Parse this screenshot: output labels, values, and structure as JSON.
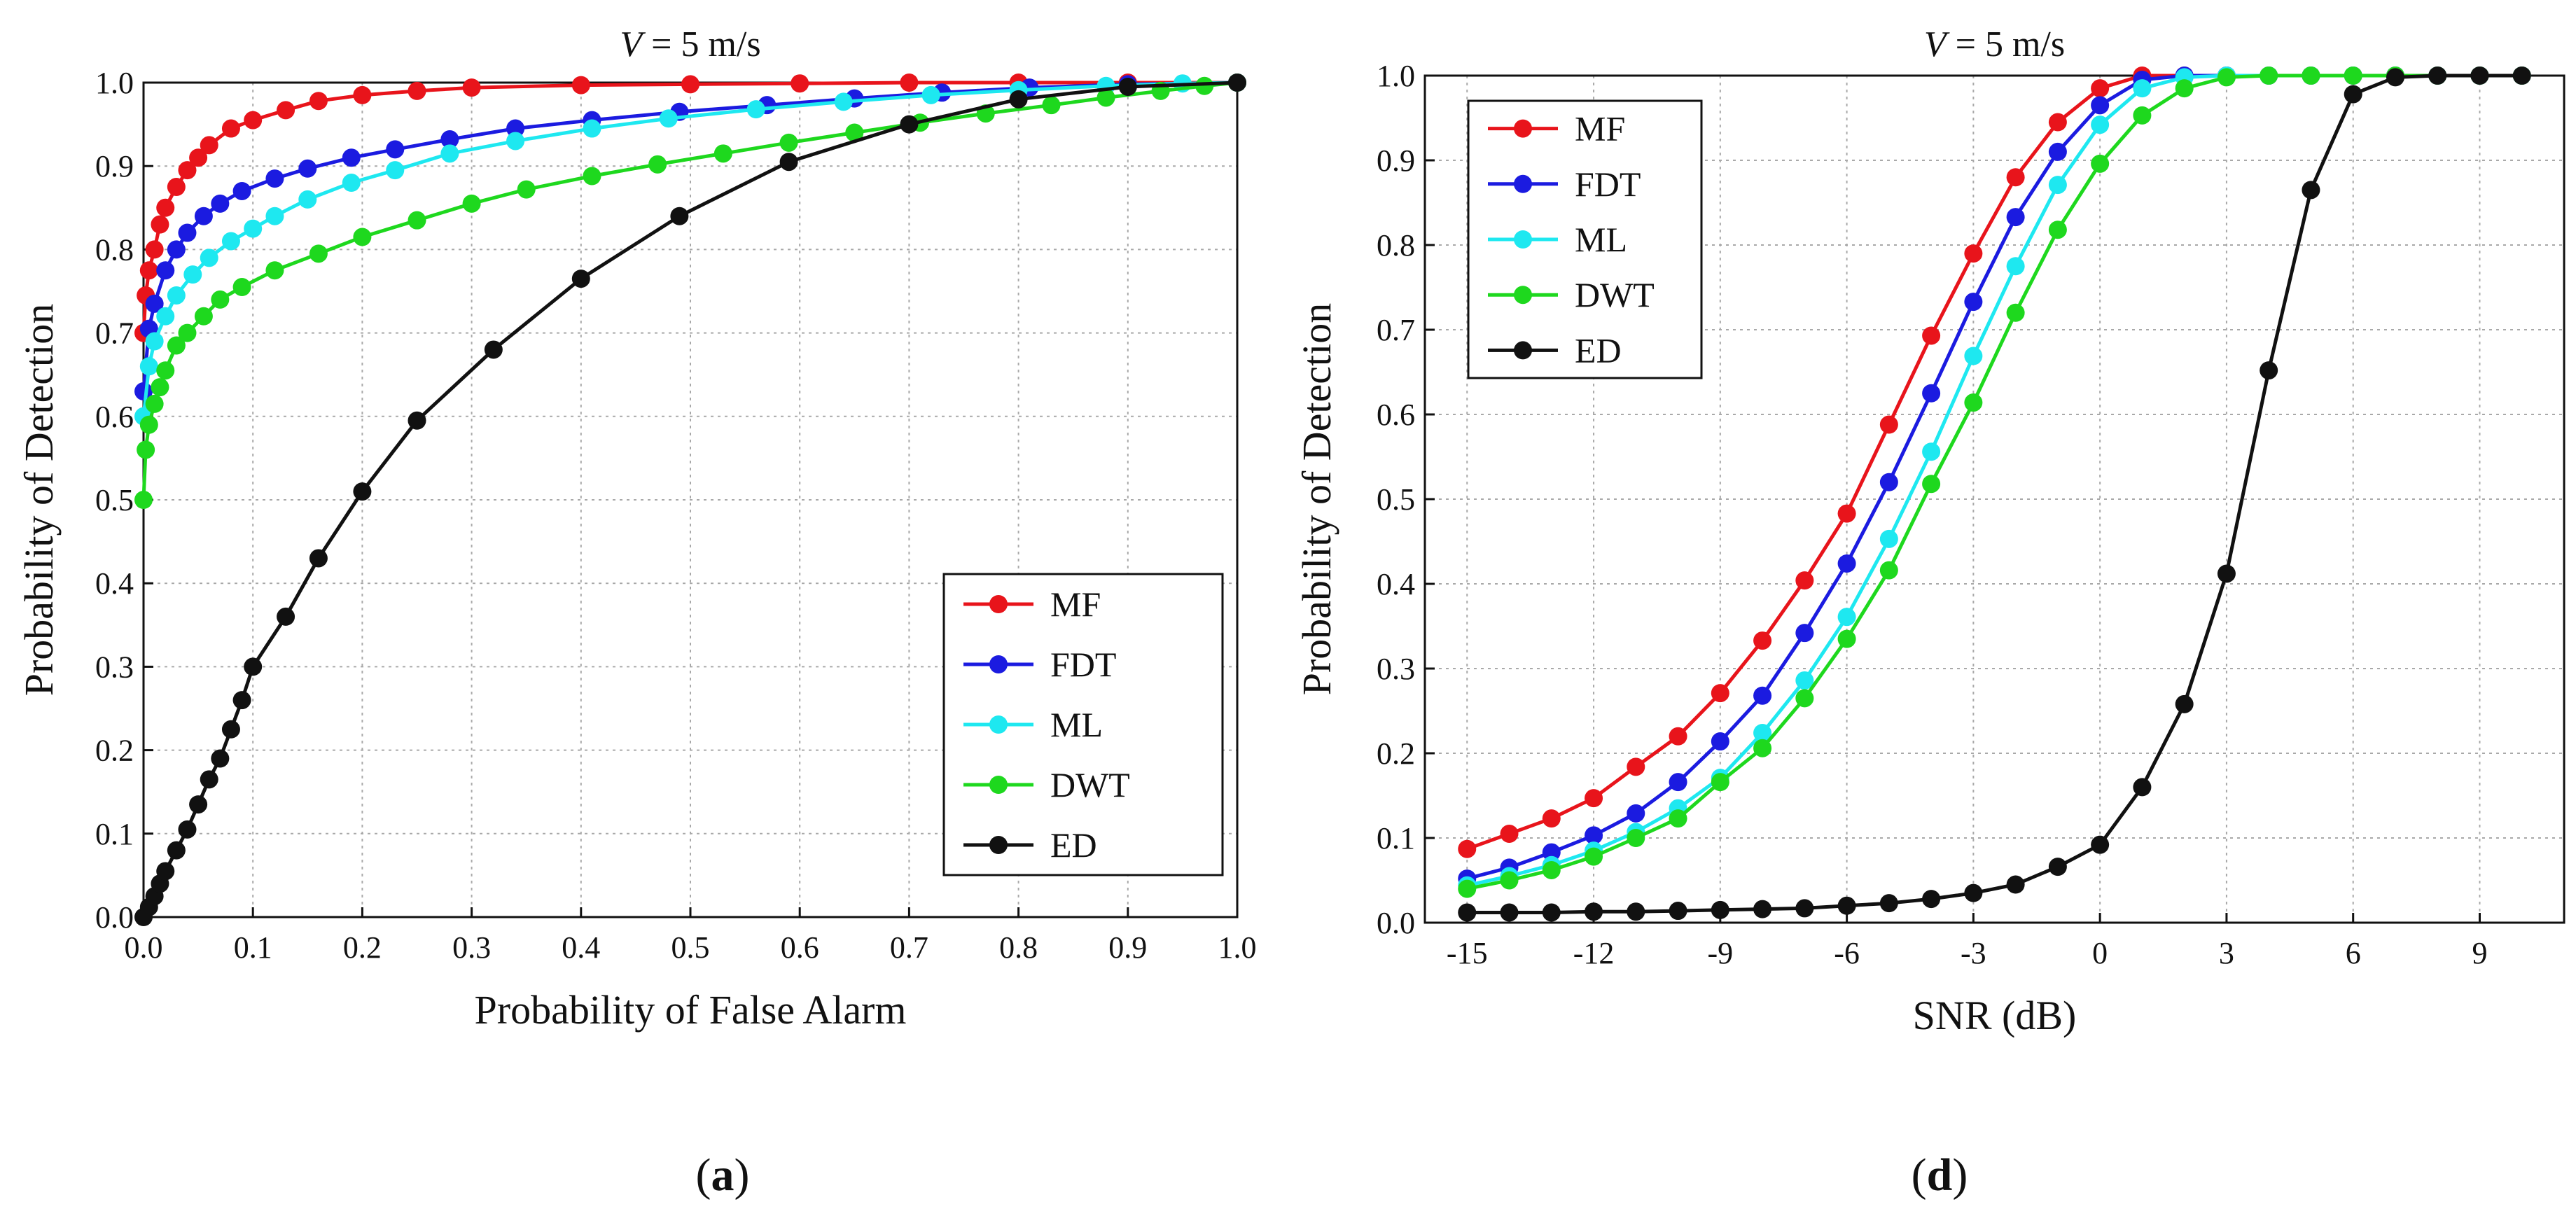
{
  "chart_data": [
    {
      "id": "a",
      "type": "line",
      "title_prefix": "V",
      "title_suffix": " = 5 m/s",
      "xlabel": "Probability of False Alarm",
      "ylabel": "Probability of Detection",
      "xlim": [
        0,
        1
      ],
      "ylim": [
        0,
        1
      ],
      "xticks": [
        0.0,
        0.1,
        0.2,
        0.3,
        0.4,
        0.5,
        0.6,
        0.7,
        0.8,
        0.9,
        1.0
      ],
      "yticks": [
        0.0,
        0.1,
        0.2,
        0.3,
        0.4,
        0.5,
        0.6,
        0.7,
        0.8,
        0.9,
        1.0
      ],
      "xtick_labels": [
        "0.0",
        "0.1",
        "0.2",
        "0.3",
        "0.4",
        "0.5",
        "0.6",
        "0.7",
        "0.8",
        "0.9",
        "1.0"
      ],
      "ytick_labels": [
        "0.0",
        "0.1",
        "0.2",
        "0.3",
        "0.4",
        "0.5",
        "0.6",
        "0.7",
        "0.8",
        "0.9",
        "1.0"
      ],
      "grid": true,
      "legend_position": "bottom-right",
      "caption_letter": "a",
      "series": [
        {
          "name": "MF",
          "color": "#e8141b",
          "x": [
            0,
            0.002,
            0.005,
            0.01,
            0.015,
            0.02,
            0.03,
            0.04,
            0.05,
            0.06,
            0.08,
            0.1,
            0.13,
            0.16,
            0.2,
            0.25,
            0.3,
            0.4,
            0.5,
            0.6,
            0.7,
            0.8,
            0.9,
            1.0
          ],
          "y": [
            0.7,
            0.745,
            0.775,
            0.8,
            0.83,
            0.85,
            0.875,
            0.895,
            0.91,
            0.925,
            0.945,
            0.955,
            0.967,
            0.978,
            0.985,
            0.99,
            0.994,
            0.997,
            0.998,
            0.999,
            1.0,
            1.0,
            1.0,
            1.0
          ]
        },
        {
          "name": "FDT",
          "color": "#1b1be0",
          "x": [
            0,
            0.005,
            0.01,
            0.02,
            0.03,
            0.04,
            0.055,
            0.07,
            0.09,
            0.12,
            0.15,
            0.19,
            0.23,
            0.28,
            0.34,
            0.41,
            0.49,
            0.57,
            0.65,
            0.73,
            0.81,
            0.9,
            1.0
          ],
          "y": [
            0.63,
            0.705,
            0.735,
            0.775,
            0.8,
            0.82,
            0.84,
            0.855,
            0.87,
            0.885,
            0.897,
            0.91,
            0.92,
            0.932,
            0.945,
            0.955,
            0.965,
            0.973,
            0.981,
            0.988,
            0.994,
            0.998,
            1.0
          ]
        },
        {
          "name": "ML",
          "color": "#1ee8f0",
          "x": [
            0,
            0.005,
            0.01,
            0.02,
            0.03,
            0.045,
            0.06,
            0.08,
            0.1,
            0.12,
            0.15,
            0.19,
            0.23,
            0.28,
            0.34,
            0.41,
            0.48,
            0.56,
            0.64,
            0.72,
            0.8,
            0.88,
            0.95,
            1.0
          ],
          "y": [
            0.6,
            0.66,
            0.69,
            0.72,
            0.745,
            0.77,
            0.79,
            0.81,
            0.825,
            0.84,
            0.86,
            0.88,
            0.895,
            0.915,
            0.93,
            0.945,
            0.957,
            0.968,
            0.977,
            0.985,
            0.991,
            0.996,
            0.999,
            1.0
          ]
        },
        {
          "name": "DWT",
          "color": "#1ed81e",
          "x": [
            0,
            0.002,
            0.005,
            0.01,
            0.015,
            0.02,
            0.03,
            0.04,
            0.055,
            0.07,
            0.09,
            0.12,
            0.16,
            0.2,
            0.25,
            0.3,
            0.35,
            0.41,
            0.47,
            0.53,
            0.59,
            0.65,
            0.71,
            0.77,
            0.83,
            0.88,
            0.93,
            0.97,
            1.0
          ],
          "y": [
            0.5,
            0.56,
            0.59,
            0.615,
            0.635,
            0.655,
            0.685,
            0.7,
            0.72,
            0.74,
            0.755,
            0.775,
            0.795,
            0.815,
            0.835,
            0.855,
            0.872,
            0.888,
            0.902,
            0.915,
            0.928,
            0.94,
            0.952,
            0.963,
            0.973,
            0.982,
            0.99,
            0.996,
            1.0
          ]
        },
        {
          "name": "ED",
          "color": "#111111",
          "x": [
            0,
            0.005,
            0.01,
            0.015,
            0.02,
            0.03,
            0.04,
            0.05,
            0.06,
            0.07,
            0.08,
            0.09,
            0.1,
            0.13,
            0.16,
            0.2,
            0.25,
            0.32,
            0.4,
            0.49,
            0.59,
            0.7,
            0.8,
            0.9,
            1.0
          ],
          "y": [
            0.0,
            0.012,
            0.025,
            0.04,
            0.055,
            0.08,
            0.105,
            0.135,
            0.165,
            0.19,
            0.225,
            0.26,
            0.3,
            0.36,
            0.43,
            0.51,
            0.595,
            0.68,
            0.765,
            0.84,
            0.905,
            0.95,
            0.98,
            0.995,
            1.0
          ]
        }
      ]
    },
    {
      "id": "d",
      "type": "line",
      "title_prefix": "V",
      "title_suffix": " = 5 m/s",
      "xlabel": "SNR (dB)",
      "ylabel": "Probability of  Detection",
      "xlim": [
        -16,
        11
      ],
      "ylim": [
        0,
        1
      ],
      "xticks": [
        -15,
        -12,
        -9,
        -6,
        -3,
        0,
        3,
        6,
        9
      ],
      "yticks": [
        0.0,
        0.1,
        0.2,
        0.3,
        0.4,
        0.5,
        0.6,
        0.7,
        0.8,
        0.9,
        1.0
      ],
      "xtick_labels": [
        "-15",
        "-12",
        "-9",
        "-6",
        "-3",
        "0",
        "3",
        "6",
        "9"
      ],
      "ytick_labels": [
        "0.0",
        "0.1",
        "0.2",
        "0.3",
        "0.4",
        "0.5",
        "0.6",
        "0.7",
        "0.8",
        "0.9",
        "1.0"
      ],
      "grid": true,
      "legend_position": "top-left",
      "caption_letter": "d",
      "series": [
        {
          "name": "MF",
          "color": "#e8141b",
          "x": [
            -15,
            -14,
            -13,
            -12,
            -11,
            -10,
            -9,
            -8,
            -7,
            -6,
            -5,
            -4,
            -3,
            -2,
            -1,
            0,
            1,
            2,
            3,
            4,
            5,
            6,
            7,
            8,
            9,
            10
          ],
          "y": [
            0.087,
            0.105,
            0.123,
            0.147,
            0.184,
            0.22,
            0.271,
            0.333,
            0.404,
            0.483,
            0.588,
            0.693,
            0.79,
            0.88,
            0.945,
            0.985,
            1.0,
            1.0,
            1.0,
            1.0,
            1.0,
            1.0,
            1.0,
            1.0,
            1.0,
            1.0
          ]
        },
        {
          "name": "FDT",
          "color": "#1b1be0",
          "x": [
            -15,
            -14,
            -13,
            -12,
            -11,
            -10,
            -9,
            -8,
            -7,
            -6,
            -5,
            -4,
            -3,
            -2,
            -1,
            0,
            1,
            2,
            3,
            4,
            5,
            6,
            7,
            8,
            9,
            10
          ],
          "y": [
            0.052,
            0.065,
            0.083,
            0.103,
            0.129,
            0.166,
            0.214,
            0.268,
            0.342,
            0.424,
            0.52,
            0.625,
            0.733,
            0.833,
            0.91,
            0.965,
            0.995,
            1.0,
            1.0,
            1.0,
            1.0,
            1.0,
            1.0,
            1.0,
            1.0,
            1.0
          ]
        },
        {
          "name": "ML",
          "color": "#1ee8f0",
          "x": [
            -15,
            -14,
            -13,
            -12,
            -11,
            -10,
            -9,
            -8,
            -7,
            -6,
            -5,
            -4,
            -3,
            -2,
            -1,
            0,
            1,
            2,
            3,
            4,
            5,
            6,
            7,
            8,
            9,
            10
          ],
          "y": [
            0.044,
            0.055,
            0.068,
            0.085,
            0.107,
            0.135,
            0.171,
            0.224,
            0.286,
            0.361,
            0.453,
            0.556,
            0.669,
            0.775,
            0.871,
            0.942,
            0.985,
            0.998,
            1.0,
            1.0,
            1.0,
            1.0,
            1.0,
            1.0,
            1.0,
            1.0
          ]
        },
        {
          "name": "DWT",
          "color": "#1ed81e",
          "x": [
            -15,
            -14,
            -13,
            -12,
            -11,
            -10,
            -9,
            -8,
            -7,
            -6,
            -5,
            -4,
            -3,
            -2,
            -1,
            0,
            1,
            2,
            3,
            4,
            5,
            6,
            7,
            8,
            9,
            10
          ],
          "y": [
            0.04,
            0.05,
            0.062,
            0.078,
            0.1,
            0.123,
            0.166,
            0.206,
            0.265,
            0.335,
            0.416,
            0.518,
            0.614,
            0.72,
            0.818,
            0.896,
            0.953,
            0.985,
            0.998,
            1.0,
            1.0,
            1.0,
            1.0,
            1.0,
            1.0,
            1.0
          ]
        },
        {
          "name": "ED",
          "color": "#111111",
          "x": [
            -15,
            -14,
            -13,
            -12,
            -11,
            -10,
            -9,
            -8,
            -7,
            -6,
            -5,
            -4,
            -3,
            -2,
            -1,
            0,
            1,
            2,
            3,
            4,
            5,
            6,
            7,
            8,
            9,
            10
          ],
          "y": [
            0.012,
            0.012,
            0.012,
            0.013,
            0.013,
            0.014,
            0.015,
            0.016,
            0.017,
            0.02,
            0.023,
            0.028,
            0.035,
            0.045,
            0.066,
            0.092,
            0.16,
            0.258,
            0.412,
            0.652,
            0.865,
            0.978,
            0.998,
            1.0,
            1.0,
            1.0
          ]
        }
      ]
    }
  ]
}
